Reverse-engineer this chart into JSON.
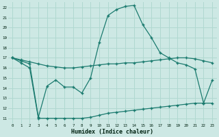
{
  "xlabel": "Humidex (Indice chaleur)",
  "bg_color": "#cde8e4",
  "grid_color": "#b0d8d0",
  "line_color": "#1a7a6e",
  "xlim": [
    -0.5,
    23.5
  ],
  "ylim": [
    10.5,
    22.5
  ],
  "xticks": [
    0,
    1,
    2,
    3,
    4,
    5,
    6,
    7,
    8,
    9,
    10,
    11,
    12,
    13,
    14,
    15,
    16,
    17,
    18,
    19,
    20,
    21,
    22,
    23
  ],
  "yticks": [
    11,
    12,
    13,
    14,
    15,
    16,
    17,
    18,
    19,
    20,
    21,
    22
  ],
  "series1_x": [
    0,
    1,
    2,
    3,
    4,
    5,
    6,
    7,
    8,
    9,
    10,
    11,
    12,
    13,
    14,
    15,
    16,
    17,
    18,
    19,
    20,
    21,
    22,
    23
  ],
  "series1_y": [
    17.0,
    16.8,
    16.6,
    16.4,
    16.2,
    16.1,
    16.0,
    16.0,
    16.1,
    16.2,
    16.3,
    16.4,
    16.4,
    16.5,
    16.5,
    16.6,
    16.7,
    16.8,
    16.9,
    17.0,
    17.0,
    16.9,
    16.7,
    16.5
  ],
  "series2_x": [
    0,
    1,
    2,
    3,
    4,
    5,
    6,
    7,
    8,
    9,
    10,
    11,
    12,
    13,
    14,
    15,
    16,
    17,
    18,
    19,
    20,
    21,
    22,
    23
  ],
  "series2_y": [
    17.0,
    16.7,
    16.4,
    11.1,
    14.2,
    14.8,
    14.1,
    14.1,
    13.5,
    15.0,
    18.5,
    21.2,
    21.8,
    22.1,
    22.2,
    20.3,
    19.0,
    17.5,
    17.0,
    16.5,
    16.3,
    15.9,
    12.5,
    14.8
  ],
  "series3_x": [
    0,
    1,
    2,
    3,
    4,
    5,
    6,
    7,
    8,
    9,
    10,
    11,
    12,
    13,
    14,
    15,
    16,
    17,
    18,
    19,
    20,
    21,
    22,
    23
  ],
  "series3_y": [
    17.0,
    16.5,
    16.0,
    11.0,
    11.0,
    11.0,
    11.0,
    11.0,
    11.0,
    11.1,
    11.3,
    11.5,
    11.6,
    11.7,
    11.8,
    11.9,
    12.0,
    12.1,
    12.2,
    12.3,
    12.4,
    12.5,
    12.5,
    12.5
  ]
}
